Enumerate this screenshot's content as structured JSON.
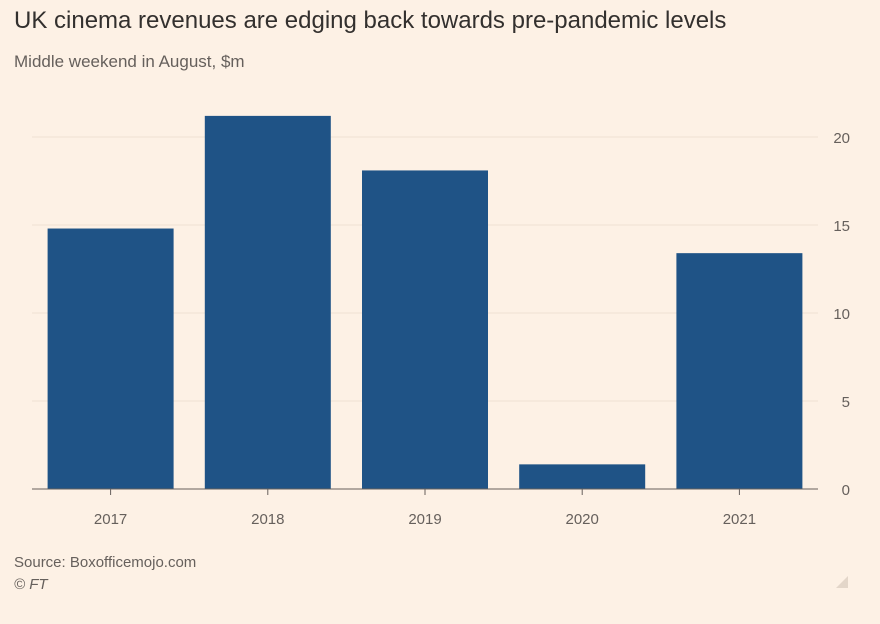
{
  "title": "UK cinema revenues are edging back towards pre-pandemic levels",
  "subtitle": "Middle weekend in August, $m",
  "source": "Source: Boxofficemojo.com",
  "credit": "© FT",
  "colors": {
    "bar": "#1f5386",
    "background": "#fdf1e5",
    "grid": "#eee1d3",
    "axis_text": "#66605c"
  },
  "chart_data": {
    "type": "bar",
    "categories": [
      "2017",
      "2018",
      "2019",
      "2020",
      "2021"
    ],
    "values": [
      14.8,
      21.2,
      18.1,
      1.4,
      13.4
    ],
    "title": "UK cinema revenues are edging back towards pre-pandemic levels",
    "subtitle": "Middle weekend in August, $m",
    "xlabel": "",
    "ylabel": "",
    "ylim": [
      0,
      22
    ],
    "yticks": [
      0,
      5,
      10,
      15,
      20
    ],
    "y_axis_side": "right",
    "grid": true,
    "legend": "none"
  }
}
